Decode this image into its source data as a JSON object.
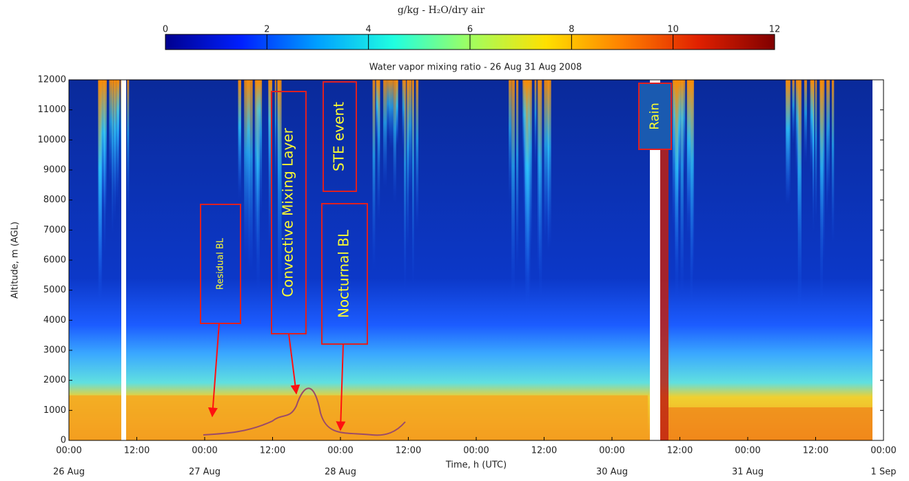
{
  "chart_data": {
    "type": "heatmap",
    "title": "Water vapor mixing ratio - 26 Aug 31 Aug 2008",
    "x_label": "Time, h (UTC)",
    "y_label": "Altitude, m (AGL)",
    "ylim": [
      0,
      12000
    ],
    "yticks": [
      0,
      1000,
      2000,
      3000,
      4000,
      5000,
      6000,
      7000,
      8000,
      9000,
      10000,
      11000,
      12000
    ],
    "categories": [
      "00:00",
      "12:00",
      "00:00",
      "12:00",
      "00:00",
      "12:00",
      "00:00",
      "12:00",
      "00:00",
      "12:00",
      "00:00",
      "12:00",
      "00:00"
    ],
    "dates": [
      "26 Aug",
      null,
      "27 Aug",
      null,
      "28 Aug",
      null,
      null,
      null,
      "30 Aug",
      null,
      "31 Aug",
      null,
      "1 Sep"
    ],
    "colorbar": {
      "label": "g/kg -  H₂O/dry air",
      "lim": [
        0,
        12
      ],
      "ticks": [
        0,
        2,
        4,
        6,
        8,
        10,
        12
      ],
      "colors": [
        "#00008f",
        "#0020ff",
        "#00a0ff",
        "#20ffe0",
        "#a0ff60",
        "#ffe000",
        "#ff8000",
        "#e02000",
        "#800000"
      ]
    },
    "annotations": [
      "Residual BL",
      "Convective Mixing Layer",
      "STE  event",
      "Nocturnal  BL",
      "Rain"
    ]
  }
}
